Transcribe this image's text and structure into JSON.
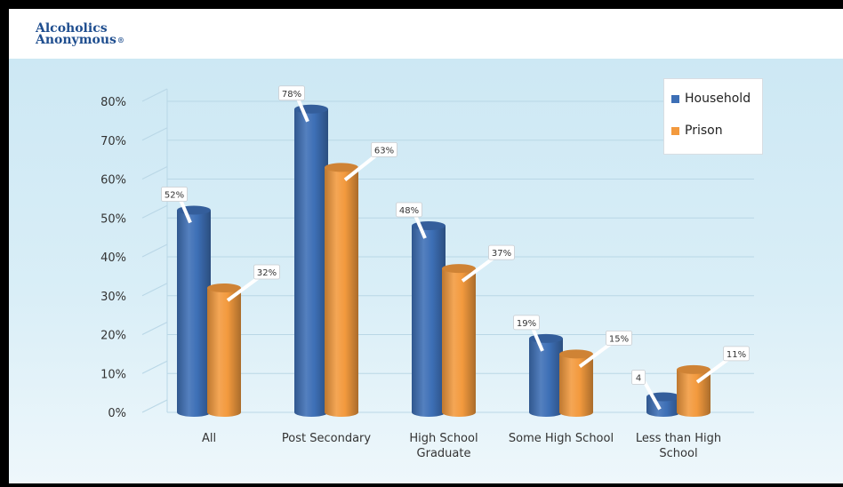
{
  "brand": {
    "line1": "Alcoholics",
    "line2": "Anonymous",
    "mark": "®",
    "color": "#1f4e8f"
  },
  "chart_data": {
    "type": "bar",
    "title": "",
    "xlabel": "",
    "ylabel": "",
    "ylim": [
      0,
      80
    ],
    "yticks": [
      "0%",
      "10%",
      "20%",
      "30%",
      "40%",
      "50%",
      "60%",
      "70%",
      "80%"
    ],
    "categories": [
      "All",
      "Post Secondary",
      "High School Graduate",
      "Some High School",
      "Less than High School"
    ],
    "series": [
      {
        "name": "Household",
        "color": "#3d6fb6",
        "values": [
          52,
          78,
          48,
          19,
          4
        ],
        "labels": [
          "52%",
          "78%",
          "48%",
          "19%",
          "4"
        ]
      },
      {
        "name": "Prison",
        "color": "#f39a3e",
        "values": [
          32,
          63,
          37,
          15,
          11
        ],
        "labels": [
          "32%",
          "63%",
          "37%",
          "15%",
          "11%"
        ]
      }
    ],
    "legend_position": "top-right",
    "grid": true
  }
}
